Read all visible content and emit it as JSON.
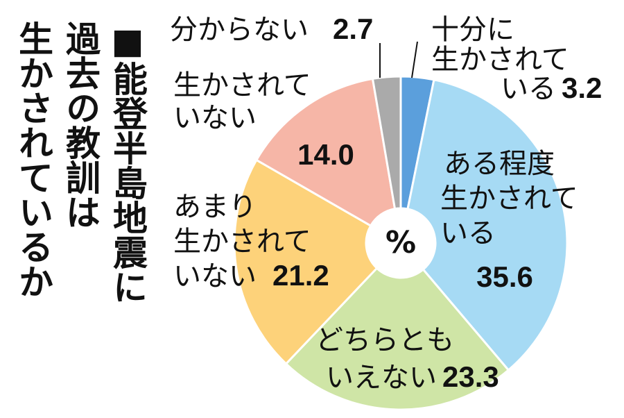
{
  "chart_data": {
    "type": "pie",
    "title": "■能登半島地震に\n過去の教訓は\n生かされているか",
    "center_label": "%",
    "categories": [
      "十分に\n生かされて\nいる",
      "ある程度\n生かされて\nいる",
      "どちらとも\nいえない",
      "あまり\n生かされて\nいない",
      "生かされて\nいない",
      "分からない"
    ],
    "values": [
      3.2,
      35.6,
      23.3,
      21.2,
      14.0,
      2.7
    ],
    "value_labels": [
      "3.2",
      "35.6",
      "23.3",
      "21.2",
      "14.0",
      "2.7"
    ],
    "colors": [
      "#5b9fdc",
      "#a6daf4",
      "#cfe5a6",
      "#fdd27a",
      "#f6b6a7",
      "#aaaaaa"
    ]
  }
}
